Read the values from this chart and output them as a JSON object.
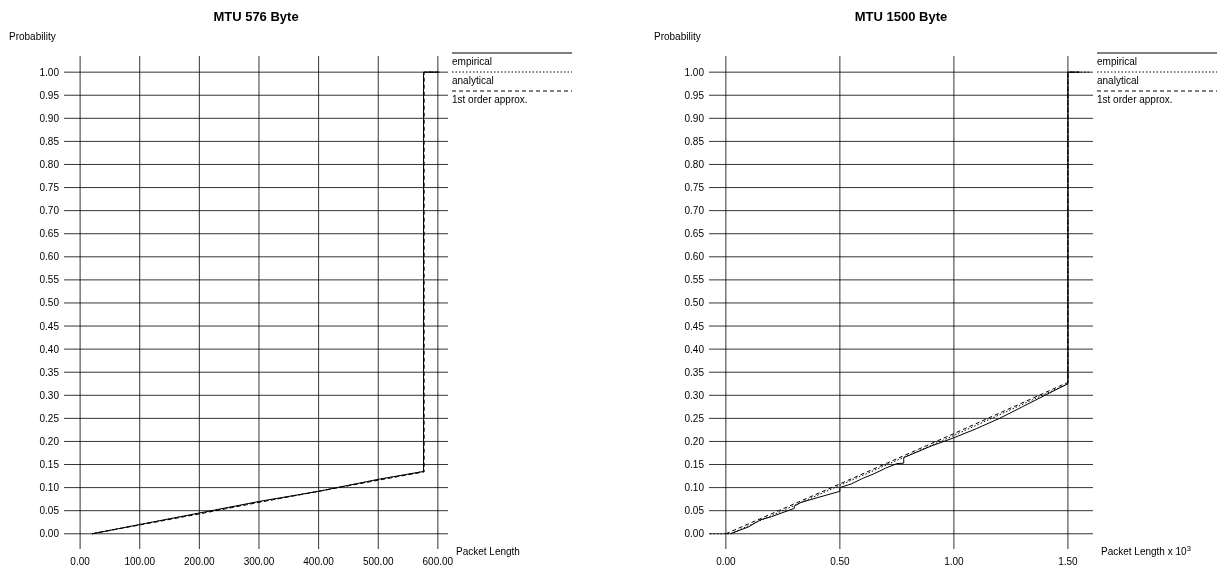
{
  "chart_data": [
    {
      "type": "line",
      "title": "MTU 576 Byte",
      "xlabel": "Packet Length",
      "ylabel": "Probability",
      "xlim": [
        -27,
        617
      ],
      "ylim": [
        -0.033,
        1.035
      ],
      "xticks": [
        {
          "value": 0,
          "label": "0.00"
        },
        {
          "value": 100,
          "label": "100.00"
        },
        {
          "value": 200,
          "label": "200.00"
        },
        {
          "value": 300,
          "label": "300.00"
        },
        {
          "value": 400,
          "label": "400.00"
        },
        {
          "value": 500,
          "label": "500.00"
        },
        {
          "value": 600,
          "label": "600.00"
        }
      ],
      "yticks": [
        {
          "value": 0,
          "label": "0.00"
        },
        {
          "value": 0.05,
          "label": "0.05"
        },
        {
          "value": 0.1,
          "label": "0.10"
        },
        {
          "value": 0.15,
          "label": "0.15"
        },
        {
          "value": 0.2,
          "label": "0.20"
        },
        {
          "value": 0.25,
          "label": "0.25"
        },
        {
          "value": 0.3,
          "label": "0.30"
        },
        {
          "value": 0.35,
          "label": "0.35"
        },
        {
          "value": 0.4,
          "label": "0.40"
        },
        {
          "value": 0.45,
          "label": "0.45"
        },
        {
          "value": 0.5,
          "label": "0.50"
        },
        {
          "value": 0.55,
          "label": "0.55"
        },
        {
          "value": 0.6,
          "label": "0.60"
        },
        {
          "value": 0.65,
          "label": "0.65"
        },
        {
          "value": 0.7,
          "label": "0.70"
        },
        {
          "value": 0.75,
          "label": "0.75"
        },
        {
          "value": 0.8,
          "label": "0.80"
        },
        {
          "value": 0.85,
          "label": "0.85"
        },
        {
          "value": 0.9,
          "label": "0.90"
        },
        {
          "value": 0.95,
          "label": "0.95"
        },
        {
          "value": 1,
          "label": "1.00"
        }
      ],
      "grid": true,
      "legend": "top right",
      "series": [
        {
          "name": "empirical",
          "color": "#000000",
          "line_style": "solid",
          "x": [
            20,
            100,
            200,
            300,
            400,
            500,
            576,
            576,
            600
          ],
          "values": [
            0,
            0.02,
            0.045,
            0.07,
            0.092,
            0.118,
            0.135,
            1,
            1
          ]
        },
        {
          "name": "analytical",
          "color": "#000000",
          "line_style": "dotted",
          "x": [
            20,
            100,
            200,
            300,
            400,
            500,
            576,
            576,
            600
          ],
          "values": [
            0,
            0.02,
            0.044,
            0.069,
            0.092,
            0.117,
            0.135,
            1,
            1
          ]
        },
        {
          "name": "1st order approx.",
          "color": "#000000",
          "line_style": "dashed",
          "x": [
            20,
            100,
            200,
            300,
            400,
            500,
            577,
            577,
            605
          ],
          "values": [
            0,
            0.019,
            0.043,
            0.068,
            0.092,
            0.116,
            0.134,
            1,
            1
          ]
        }
      ]
    },
    {
      "type": "line",
      "title": "MTU 1500 Byte",
      "xlabel": "Packet Length x 10$^{3}$",
      "ylabel": "Probability",
      "xlim": [
        -0.074,
        1.61
      ],
      "ylim": [
        -0.033,
        1.035
      ],
      "xticks": [
        {
          "value": 0,
          "label": "0.00"
        },
        {
          "value": 0.5,
          "label": "0.50"
        },
        {
          "value": 1,
          "label": "1.00"
        },
        {
          "value": 1.5,
          "label": "1.50"
        }
      ],
      "yticks": [
        {
          "value": 0,
          "label": "0.00"
        },
        {
          "value": 0.05,
          "label": "0.05"
        },
        {
          "value": 0.1,
          "label": "0.10"
        },
        {
          "value": 0.15,
          "label": "0.15"
        },
        {
          "value": 0.2,
          "label": "0.20"
        },
        {
          "value": 0.25,
          "label": "0.25"
        },
        {
          "value": 0.3,
          "label": "0.30"
        },
        {
          "value": 0.35,
          "label": "0.35"
        },
        {
          "value": 0.4,
          "label": "0.40"
        },
        {
          "value": 0.45,
          "label": "0.45"
        },
        {
          "value": 0.5,
          "label": "0.50"
        },
        {
          "value": 0.55,
          "label": "0.55"
        },
        {
          "value": 0.6,
          "label": "0.60"
        },
        {
          "value": 0.65,
          "label": "0.65"
        },
        {
          "value": 0.7,
          "label": "0.70"
        },
        {
          "value": 0.75,
          "label": "0.75"
        },
        {
          "value": 0.8,
          "label": "0.80"
        },
        {
          "value": 0.85,
          "label": "0.85"
        },
        {
          "value": 0.9,
          "label": "0.90"
        },
        {
          "value": 0.95,
          "label": "0.95"
        },
        {
          "value": 1,
          "label": "1.00"
        }
      ],
      "grid": true,
      "legend": "top right",
      "series": [
        {
          "name": "empirical",
          "color": "#000000",
          "line_style": "solid",
          "x": [
            0.02,
            0.1,
            0.15,
            0.2,
            0.3,
            0.3,
            0.33,
            0.4,
            0.5,
            0.5,
            0.55,
            0.6,
            0.65,
            0.7,
            0.75,
            0.78,
            0.78,
            0.9,
            1.0,
            1.1,
            1.2,
            1.3,
            1.4,
            1.5,
            1.5,
            1.55
          ],
          "values": [
            0,
            0.015,
            0.03,
            0.037,
            0.055,
            0.06,
            0.068,
            0.078,
            0.092,
            0.1,
            0.108,
            0.12,
            0.13,
            0.142,
            0.152,
            0.153,
            0.165,
            0.19,
            0.208,
            0.228,
            0.25,
            0.275,
            0.3,
            0.325,
            1,
            1
          ]
        },
        {
          "name": "analytical",
          "color": "#000000",
          "line_style": "dotted",
          "x": [
            -0.07,
            0.02,
            0.5,
            1.0,
            1.5,
            1.5,
            1.6
          ],
          "values": [
            0,
            0,
            0.105,
            0.213,
            0.325,
            1,
            1
          ]
        },
        {
          "name": "1st order approx.",
          "color": "#000000",
          "line_style": "dashed",
          "x": [
            0,
            0.5,
            1.0,
            1.5,
            1.5,
            1.55
          ],
          "values": [
            0,
            0.108,
            0.217,
            0.328,
            1,
            1
          ]
        }
      ]
    }
  ]
}
